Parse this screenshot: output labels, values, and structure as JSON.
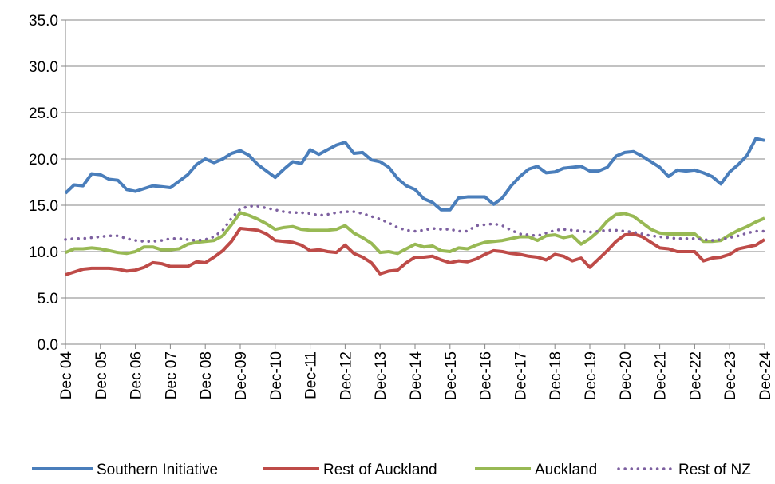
{
  "chart_data": {
    "type": "line",
    "categories": [
      "Dec 04",
      null,
      null,
      null,
      "Dec 05",
      null,
      null,
      null,
      "Dec 06",
      null,
      null,
      null,
      "Dec 07",
      null,
      null,
      null,
      "Dec 08",
      null,
      null,
      null,
      "Dec-09",
      null,
      null,
      null,
      "Dec-10",
      null,
      null,
      null,
      "Dec-11",
      null,
      null,
      null,
      "Dec-12",
      null,
      null,
      null,
      "Dec-13",
      null,
      null,
      null,
      "Dec-14",
      null,
      null,
      null,
      "Dec-15",
      null,
      null,
      null,
      "Dec-16",
      null,
      null,
      null,
      "Dec-17",
      null,
      null,
      null,
      "Dec-18",
      null,
      null,
      null,
      "Dec-19",
      null,
      null,
      null,
      "Dec-20",
      null,
      null,
      null,
      "Dec-21",
      null,
      null,
      null,
      "Dec-22",
      null,
      null,
      null,
      "Dec-23",
      null,
      null,
      null,
      "Dec-24"
    ],
    "series": [
      {
        "name": "Southern Initiative",
        "color": "#4a7ebb",
        "line_style": "solid",
        "values": [
          16.3,
          17.2,
          17.1,
          18.4,
          18.3,
          17.8,
          17.7,
          16.7,
          16.5,
          16.8,
          17.1,
          17.0,
          16.9,
          17.6,
          18.3,
          19.4,
          20.0,
          19.6,
          20.0,
          20.6,
          20.9,
          20.4,
          19.4,
          18.7,
          18.0,
          18.9,
          19.7,
          19.5,
          21.0,
          20.5,
          21.0,
          21.5,
          21.8,
          20.6,
          20.7,
          19.9,
          19.7,
          19.1,
          17.9,
          17.1,
          16.7,
          15.7,
          15.3,
          14.5,
          14.5,
          15.8,
          15.9,
          15.9,
          15.9,
          15.1,
          15.8,
          17.1,
          18.1,
          18.9,
          19.2,
          18.5,
          18.6,
          19.0,
          19.1,
          19.2,
          18.7,
          18.7,
          19.1,
          20.3,
          20.7,
          20.8,
          20.3,
          19.7,
          19.1,
          18.1,
          18.8,
          18.7,
          18.8,
          18.5,
          18.1,
          17.3,
          18.6,
          19.4,
          20.4,
          22.2,
          22.0
        ]
      },
      {
        "name": "Rest of Auckland",
        "color": "#be4b48",
        "line_style": "solid",
        "values": [
          7.5,
          7.8,
          8.1,
          8.2,
          8.2,
          8.2,
          8.1,
          7.9,
          8.0,
          8.3,
          8.8,
          8.7,
          8.4,
          8.4,
          8.4,
          8.9,
          8.8,
          9.4,
          10.1,
          11.1,
          12.5,
          12.4,
          12.3,
          11.9,
          11.2,
          11.1,
          11.0,
          10.7,
          10.1,
          10.2,
          10.0,
          9.9,
          10.7,
          9.8,
          9.4,
          8.8,
          7.6,
          7.9,
          8.0,
          8.8,
          9.4,
          9.4,
          9.5,
          9.1,
          8.8,
          9.0,
          8.9,
          9.2,
          9.7,
          10.1,
          10.0,
          9.8,
          9.7,
          9.5,
          9.4,
          9.1,
          9.7,
          9.5,
          9.0,
          9.3,
          8.3,
          9.2,
          10.1,
          11.1,
          11.8,
          11.9,
          11.6,
          11.0,
          10.4,
          10.3,
          10.0,
          10.0,
          10.0,
          9.0,
          9.3,
          9.4,
          9.7,
          10.3,
          10.5,
          10.7,
          11.3
        ]
      },
      {
        "name": "Auckland",
        "color": "#98b954",
        "line_style": "solid",
        "values": [
          9.9,
          10.3,
          10.3,
          10.4,
          10.3,
          10.1,
          9.9,
          9.8,
          10.0,
          10.5,
          10.5,
          10.2,
          10.2,
          10.3,
          10.8,
          11.0,
          11.1,
          11.2,
          11.7,
          12.9,
          14.2,
          13.9,
          13.5,
          13.0,
          12.4,
          12.6,
          12.7,
          12.4,
          12.3,
          12.3,
          12.3,
          12.4,
          12.8,
          12.0,
          11.5,
          10.9,
          9.9,
          10.0,
          9.8,
          10.3,
          10.8,
          10.5,
          10.6,
          10.1,
          10.0,
          10.4,
          10.3,
          10.7,
          11.0,
          11.1,
          11.2,
          11.4,
          11.6,
          11.6,
          11.2,
          11.7,
          11.8,
          11.5,
          11.7,
          10.8,
          11.4,
          12.2,
          13.3,
          14.0,
          14.1,
          13.8,
          13.1,
          12.4,
          12.0,
          11.9,
          11.9,
          11.9,
          11.9,
          11.1,
          11.1,
          11.2,
          11.8,
          12.3,
          12.7,
          13.2,
          13.6
        ]
      },
      {
        "name": "Rest of NZ",
        "color": "#7d60a0",
        "line_style": "dotted",
        "values": [
          11.3,
          11.4,
          11.4,
          11.5,
          11.6,
          11.7,
          11.7,
          11.4,
          11.2,
          11.1,
          11.1,
          11.2,
          11.4,
          11.4,
          11.3,
          11.2,
          11.3,
          11.6,
          12.3,
          13.6,
          14.6,
          14.9,
          14.9,
          14.7,
          14.5,
          14.3,
          14.2,
          14.2,
          14.1,
          13.9,
          14.0,
          14.2,
          14.3,
          14.3,
          14.1,
          13.8,
          13.5,
          13.1,
          12.6,
          12.3,
          12.2,
          12.3,
          12.5,
          12.4,
          12.4,
          12.2,
          12.2,
          12.8,
          12.9,
          13.0,
          12.8,
          12.3,
          11.9,
          11.8,
          11.7,
          12.0,
          12.3,
          12.4,
          12.3,
          12.2,
          12.1,
          12.2,
          12.3,
          12.3,
          12.2,
          12.1,
          11.9,
          11.7,
          11.6,
          11.5,
          11.4,
          11.4,
          11.4,
          11.3,
          11.2,
          11.3,
          11.5,
          11.7,
          12.0,
          12.2,
          12.2
        ]
      }
    ],
    "ylim": [
      0,
      35
    ],
    "yticks": [
      {
        "value": 0,
        "label": "0.0"
      },
      {
        "value": 5,
        "label": "5.0"
      },
      {
        "value": 10,
        "label": "10.0"
      },
      {
        "value": 15,
        "label": "15.0"
      },
      {
        "value": 20,
        "label": "20.0"
      },
      {
        "value": 25,
        "label": "25.0"
      },
      {
        "value": 30,
        "label": "30.0"
      },
      {
        "value": 35,
        "label": "35.0"
      }
    ],
    "grid": true,
    "legend": "bottom"
  }
}
